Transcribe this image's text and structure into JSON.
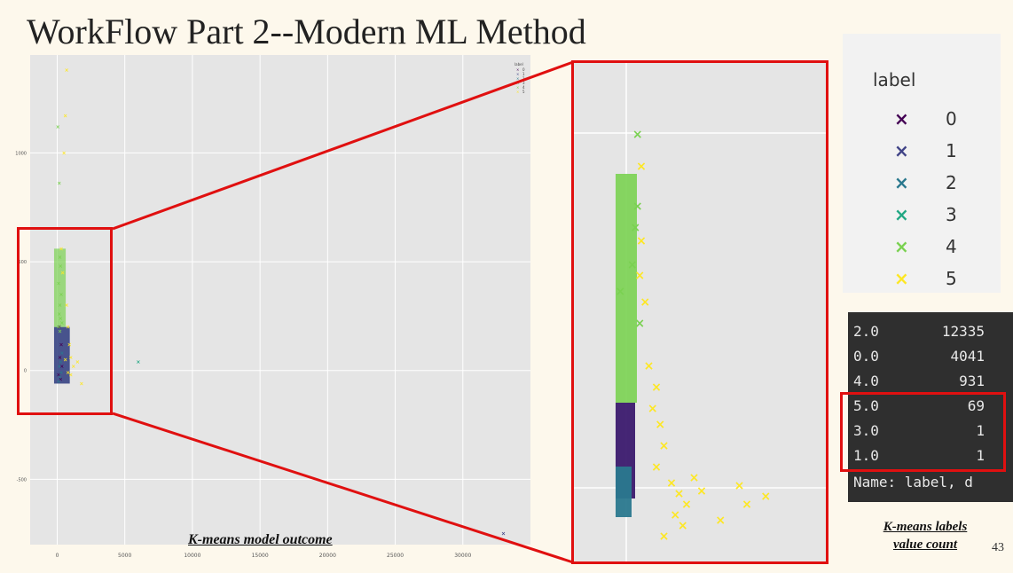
{
  "slide": {
    "title": "WorkFlow Part 2--Modern ML Method",
    "page_number": "43",
    "main_plot_caption": "K-means model outcome",
    "counts_caption_line1": "K-means labels",
    "counts_caption_line2": "value count"
  },
  "legend": {
    "title": "label",
    "items": [
      {
        "label": "0",
        "color": "#440154"
      },
      {
        "label": "1",
        "color": "#414487"
      },
      {
        "label": "2",
        "color": "#2a788e"
      },
      {
        "label": "3",
        "color": "#22a884"
      },
      {
        "label": "4",
        "color": "#7ad151"
      },
      {
        "label": "5",
        "color": "#fde725"
      }
    ]
  },
  "value_counts": {
    "rows": [
      {
        "key": "2.0",
        "value": "12335"
      },
      {
        "key": "0.0",
        "value": "4041"
      },
      {
        "key": "4.0",
        "value": "931"
      },
      {
        "key": "5.0",
        "value": "69"
      },
      {
        "key": "3.0",
        "value": "1"
      },
      {
        "key": "1.0",
        "value": "1"
      }
    ],
    "footer": "Name: label, d"
  },
  "chart_data": {
    "type": "scatter",
    "title": "",
    "xlabel": "",
    "ylabel": "",
    "x_ticks": [
      "0",
      "5000",
      "10000",
      "15000",
      "20000",
      "25000",
      "30000"
    ],
    "y_ticks": [
      "1000",
      "500",
      "0",
      "-500"
    ],
    "xlim": [
      -2000,
      35000
    ],
    "ylim": [
      -800,
      1450
    ],
    "grid": true,
    "legend_position": "top-right",
    "series": [
      {
        "name": "0",
        "color": "#440154",
        "points": [
          [
            100,
            -20
          ],
          [
            200,
            60
          ],
          [
            300,
            120
          ],
          [
            150,
            200
          ],
          [
            250,
            -40
          ],
          [
            350,
            20
          ]
        ]
      },
      {
        "name": "1",
        "color": "#414487",
        "points": [
          [
            33000,
            -750
          ]
        ]
      },
      {
        "name": "2",
        "color": "#2a788e",
        "points": [
          [
            100,
            -50
          ],
          [
            200,
            -30
          ],
          [
            300,
            -10
          ],
          [
            150,
            20
          ],
          [
            250,
            40
          ],
          [
            350,
            80
          ]
        ]
      },
      {
        "name": "3",
        "color": "#22a884",
        "points": [
          [
            6000,
            40
          ]
        ]
      },
      {
        "name": "4",
        "color": "#7ad151",
        "points": [
          [
            50,
            1120
          ],
          [
            150,
            860
          ],
          [
            200,
            520
          ],
          [
            250,
            480
          ],
          [
            100,
            400
          ],
          [
            300,
            350
          ],
          [
            200,
            300
          ],
          [
            150,
            260
          ],
          [
            250,
            240
          ],
          [
            350,
            220
          ],
          [
            100,
            200
          ],
          [
            200,
            180
          ]
        ]
      },
      {
        "name": "5",
        "color": "#fde725",
        "points": [
          [
            700,
            1380
          ],
          [
            600,
            1170
          ],
          [
            500,
            1000
          ],
          [
            300,
            560
          ],
          [
            400,
            450
          ],
          [
            700,
            300
          ],
          [
            800,
            200
          ],
          [
            900,
            120
          ],
          [
            1000,
            60
          ],
          [
            1200,
            20
          ],
          [
            1500,
            40
          ],
          [
            1800,
            -60
          ],
          [
            1000,
            -20
          ],
          [
            800,
            -10
          ],
          [
            600,
            50
          ]
        ]
      }
    ]
  }
}
